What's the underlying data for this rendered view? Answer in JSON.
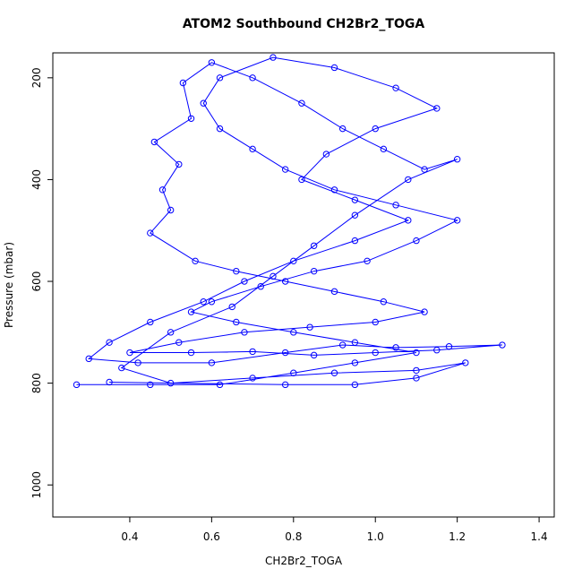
{
  "chart_data": {
    "type": "line",
    "title": "ATOM2 Southbound CH2Br2_TOGA",
    "x_label": "CH2Br2_TOGA",
    "y_label": "Pressure (mbar)",
    "color": "#0000ff",
    "xlim": [
      0.212,
      1.437
    ],
    "ylim": [
      1063,
      151
    ],
    "xticks": [
      0.4,
      0.6,
      0.8,
      1.0,
      1.2,
      1.4
    ],
    "yticks": [
      200,
      400,
      600,
      800,
      1000
    ],
    "x": [
      0.27,
      0.45,
      0.62,
      0.8,
      0.95,
      1.1,
      0.95,
      0.8,
      0.66,
      0.55,
      0.6,
      0.72,
      0.85,
      0.98,
      1.1,
      1.2,
      1.05,
      0.9,
      0.78,
      0.7,
      0.62,
      0.58,
      0.62,
      0.75,
      0.9,
      1.05,
      1.15,
      1.0,
      0.88,
      0.82,
      0.95,
      1.08,
      0.95,
      0.8,
      0.68,
      0.58,
      0.45,
      0.35,
      0.3,
      0.42,
      0.6,
      0.78,
      0.92,
      1.05,
      1.18,
      1.31,
      1.15,
      1.0,
      0.85,
      0.7,
      0.55,
      0.4,
      0.52,
      0.68,
      0.84,
      1.0,
      1.12,
      1.02,
      0.9,
      0.78,
      0.66,
      0.56,
      0.45,
      0.5,
      0.48,
      0.52,
      0.46,
      0.55,
      0.53,
      0.6,
      0.7,
      0.82,
      0.92,
      1.02,
      1.12,
      1.2,
      1.08,
      0.95,
      0.85,
      0.75,
      0.65,
      0.5,
      0.38,
      0.5,
      0.7,
      0.9,
      1.1,
      1.22,
      1.1,
      0.95,
      0.78,
      0.35
    ],
    "values": [
      803,
      803,
      803,
      780,
      760,
      740,
      720,
      700,
      680,
      660,
      640,
      610,
      580,
      560,
      520,
      480,
      450,
      420,
      380,
      340,
      300,
      250,
      200,
      160,
      180,
      220,
      260,
      300,
      350,
      400,
      440,
      480,
      520,
      560,
      600,
      640,
      680,
      720,
      752,
      760,
      760,
      740,
      725,
      730,
      728,
      725,
      735,
      740,
      745,
      738,
      740,
      740,
      720,
      700,
      690,
      680,
      660,
      640,
      620,
      600,
      580,
      560,
      505,
      460,
      420,
      370,
      326,
      280,
      210,
      170,
      200,
      250,
      300,
      340,
      380,
      360,
      400,
      470,
      530,
      590,
      650,
      700,
      770,
      800,
      790,
      780,
      775,
      760,
      790,
      803,
      803,
      798
    ]
  }
}
